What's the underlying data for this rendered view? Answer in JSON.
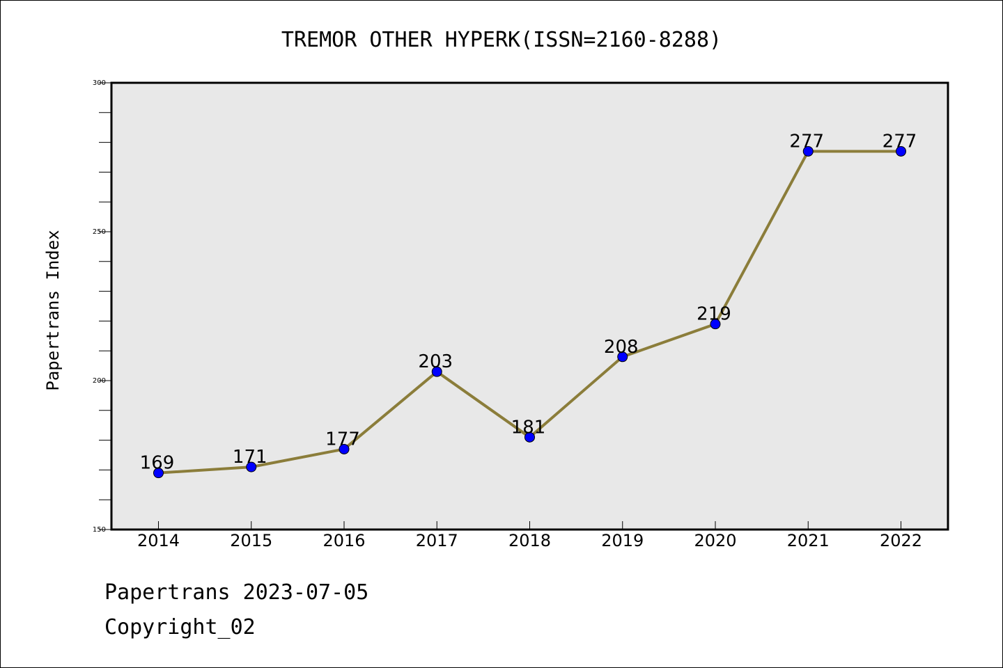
{
  "chart_data": {
    "type": "line",
    "title": "TREMOR OTHER HYPERK(ISSN=2160-8288)",
    "ylabel": "Papertrans Index",
    "xlabel": "",
    "categories": [
      "2014",
      "2015",
      "2016",
      "2017",
      "2018",
      "2019",
      "2020",
      "2021",
      "2022"
    ],
    "series": [
      {
        "values": [
          169,
          171,
          177,
          203,
          181,
          208,
          219,
          277,
          277
        ]
      }
    ],
    "data_labels": [
      "169",
      "171",
      "177",
      "203",
      "181",
      "208",
      "219",
      "277",
      "277"
    ],
    "ylim": [
      150,
      300
    ],
    "yticks": [
      "150",
      "200",
      "250",
      "300"
    ],
    "grid": false,
    "colors": {
      "line": "#8b7d3a",
      "marker": "#0000ff",
      "plot_bg": "#e8e8e8"
    }
  },
  "footer": {
    "line1": "Papertrans 2023-07-05",
    "line2": "Copyright_02"
  }
}
